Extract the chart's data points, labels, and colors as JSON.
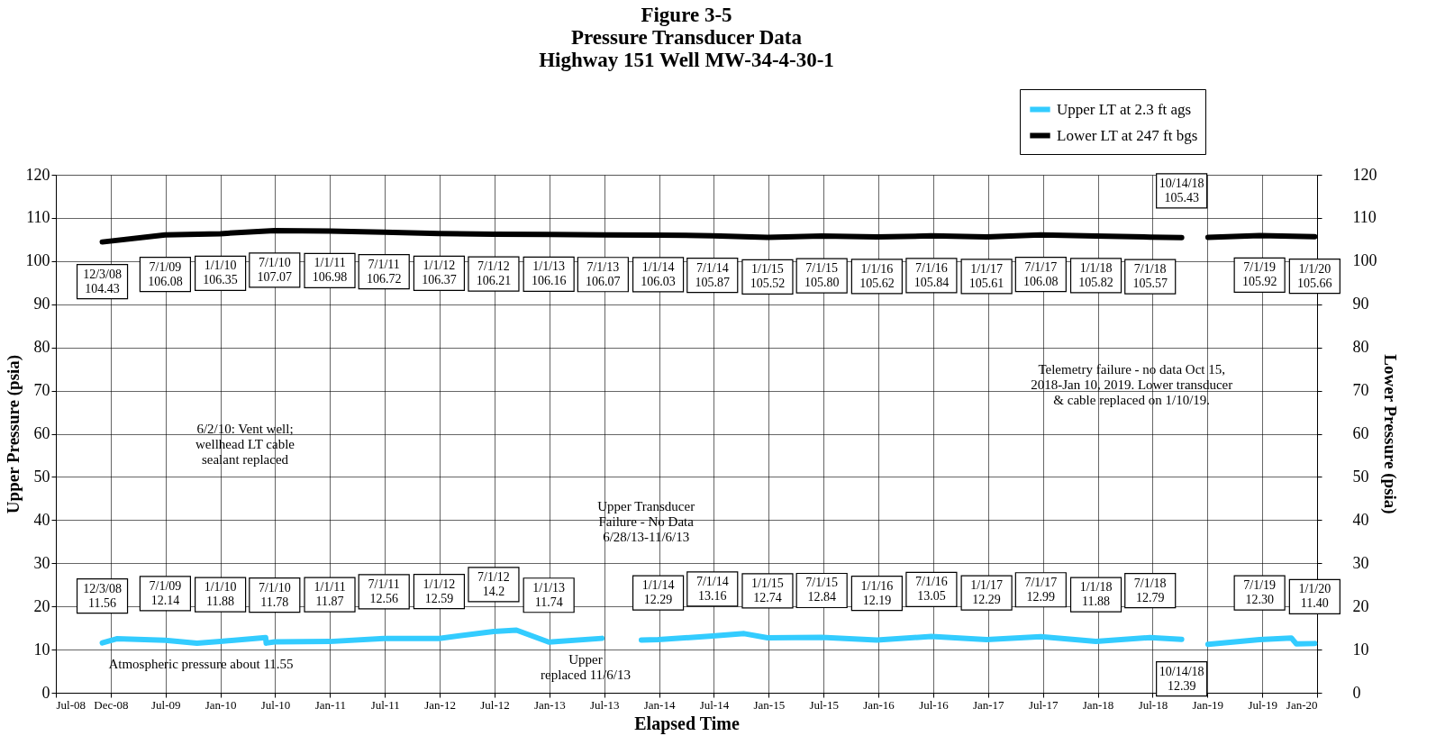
{
  "chart_data": {
    "type": "line",
    "title": "Figure 3-5\nPressure Transducer  Data\nHighway 151 Well MW-34-4-30-1",
    "xlabel": "Elapsed Time",
    "ylabel": "Upper Pressure (psia)",
    "y2label": "Lower Pressure (psia)",
    "xlim": [
      "2008-07-01",
      "2020-01-09"
    ],
    "xticks": [
      {
        "value": "2008-07-01",
        "label": "Jul-08"
      },
      {
        "value": "2008-12-31",
        "label": "Dec-08"
      },
      {
        "value": "2009-07-02",
        "label": "Jul-09"
      },
      {
        "value": "2010-01-01",
        "label": "Jan-10"
      },
      {
        "value": "2010-07-03",
        "label": "Jul-10"
      },
      {
        "value": "2011-01-02",
        "label": "Jan-11"
      },
      {
        "value": "2011-07-04",
        "label": "Jul-11"
      },
      {
        "value": "2012-01-03",
        "label": "Jan-12"
      },
      {
        "value": "2012-07-04",
        "label": "Jul-12"
      },
      {
        "value": "2013-01-03",
        "label": "Jan-13"
      },
      {
        "value": "2013-07-05",
        "label": "Jul-13"
      },
      {
        "value": "2014-01-04",
        "label": "Jan-14"
      },
      {
        "value": "2014-07-06",
        "label": "Jul-14"
      },
      {
        "value": "2015-01-05",
        "label": "Jan-15"
      },
      {
        "value": "2015-07-07",
        "label": "Jul-15"
      },
      {
        "value": "2016-01-06",
        "label": "Jan-16"
      },
      {
        "value": "2016-07-07",
        "label": "Jul-16"
      },
      {
        "value": "2017-01-06",
        "label": "Jan-17"
      },
      {
        "value": "2017-07-08",
        "label": "Jul-17"
      },
      {
        "value": "2018-01-07",
        "label": "Jan-18"
      },
      {
        "value": "2018-07-09",
        "label": "Jul-18"
      },
      {
        "value": "2019-01-08",
        "label": "Jan-19"
      },
      {
        "value": "2019-07-10",
        "label": "Jul-19"
      },
      {
        "value": "2020-01-09",
        "label": "Jan-20"
      }
    ],
    "ylim": [
      0,
      120
    ],
    "yticks": [
      0,
      10,
      20,
      30,
      40,
      50,
      60,
      70,
      80,
      90,
      100,
      110,
      120
    ],
    "y2lim": [
      0,
      120
    ],
    "y2ticks": [
      0,
      10,
      20,
      30,
      40,
      50,
      60,
      70,
      80,
      90,
      100,
      110,
      120
    ],
    "grid": true,
    "legend": "top right",
    "marker": "none",
    "line_style": "solid",
    "series": [
      {
        "name": "Upper LT at 2.3 ft ags",
        "color": "#33ccff",
        "x": [
          "2008-12-03",
          "2009-01-20",
          "2009-07-01",
          "2009-10-15",
          "2010-01-01",
          "2010-06-01",
          "2010-06-03",
          "2010-07-01",
          "2011-01-01",
          "2011-07-01",
          "2012-01-01",
          "2012-07-01",
          "2012-09-15",
          "2013-01-01",
          "2013-06-27",
          "2013-08-01",
          "2013-11-06",
          "2014-01-01",
          "2014-07-01",
          "2014-10-15",
          "2015-01-01",
          "2015-07-01",
          "2016-01-01",
          "2016-07-01",
          "2017-01-01",
          "2017-07-01",
          "2018-01-01",
          "2018-07-01",
          "2018-10-14",
          "2018-12-01",
          "2019-01-10",
          "2019-07-01",
          "2019-10-15",
          "2019-11-01",
          "2020-01-01"
        ],
        "values": [
          11.56,
          12.5,
          12.14,
          11.5,
          11.88,
          12.8,
          11.5,
          11.78,
          11.87,
          12.56,
          12.59,
          14.2,
          14.5,
          11.74,
          12.6,
          null,
          12.2,
          12.29,
          13.16,
          13.7,
          12.74,
          12.84,
          12.19,
          13.05,
          12.29,
          12.99,
          11.88,
          12.79,
          12.39,
          null,
          11.2,
          12.3,
          12.7,
          11.3,
          11.4
        ]
      },
      {
        "name": "Lower LT at 247 ft bgs",
        "color": "#000000",
        "axis": "y2",
        "x": [
          "2008-12-03",
          "2009-07-01",
          "2010-01-01",
          "2010-07-01",
          "2011-01-01",
          "2011-07-01",
          "2012-01-01",
          "2012-07-01",
          "2013-01-01",
          "2013-07-01",
          "2014-01-01",
          "2014-07-01",
          "2015-01-01",
          "2015-07-01",
          "2016-01-01",
          "2016-07-01",
          "2017-01-01",
          "2017-07-01",
          "2018-01-01",
          "2018-07-01",
          "2018-10-14",
          "2018-12-01",
          "2019-01-10",
          "2019-07-01",
          "2020-01-01"
        ],
        "values": [
          104.43,
          106.08,
          106.35,
          107.07,
          106.98,
          106.72,
          106.37,
          106.21,
          106.16,
          106.07,
          106.03,
          105.87,
          105.52,
          105.8,
          105.62,
          105.84,
          105.61,
          106.08,
          105.82,
          105.57,
          105.43,
          null,
          105.5,
          105.92,
          105.66
        ]
      }
    ],
    "annotations": [
      {
        "text": "12/3/08\n104.43",
        "x": "2008-12-03",
        "y": 104.43
      },
      {
        "text": "7/1/09\n106.08",
        "x": "2009-07-01",
        "y": 106.08
      },
      {
        "text": "1/1/10\n106.35",
        "x": "2010-01-01",
        "y": 106.35
      },
      {
        "text": "7/1/10\n107.07",
        "x": "2010-07-01",
        "y": 107.07
      },
      {
        "text": "1/1/11\n106.98",
        "x": "2011-01-01",
        "y": 106.98
      },
      {
        "text": "7/1/11\n106.72",
        "x": "2011-07-01",
        "y": 106.72
      },
      {
        "text": "1/1/12\n106.37",
        "x": "2012-01-01",
        "y": 106.37
      },
      {
        "text": "7/1/12\n106.21",
        "x": "2012-07-01",
        "y": 106.21
      },
      {
        "text": "1/1/13\n106.16",
        "x": "2013-01-01",
        "y": 106.16
      },
      {
        "text": "7/1/13\n106.07",
        "x": "2013-07-01",
        "y": 106.07
      },
      {
        "text": "1/1/14\n106.03",
        "x": "2014-01-01",
        "y": 106.03
      },
      {
        "text": "7/1/14\n105.87",
        "x": "2014-07-01",
        "y": 105.87
      },
      {
        "text": "1/1/15\n105.52",
        "x": "2015-01-01",
        "y": 105.52
      },
      {
        "text": "7/1/15\n105.80",
        "x": "2015-07-01",
        "y": 105.8
      },
      {
        "text": "1/1/16\n105.62",
        "x": "2016-01-01",
        "y": 105.62
      },
      {
        "text": "7/1/16\n105.84",
        "x": "2016-07-01",
        "y": 105.84
      },
      {
        "text": "1/1/17\n105.61",
        "x": "2017-01-01",
        "y": 105.61
      },
      {
        "text": "7/1/17\n106.08",
        "x": "2017-07-01",
        "y": 106.08
      },
      {
        "text": "1/1/18\n105.82",
        "x": "2018-01-01",
        "y": 105.82
      },
      {
        "text": "7/1/18\n105.57",
        "x": "2018-07-01",
        "y": 105.57
      },
      {
        "text": "10/14/18\n105.43",
        "x": "2018-10-14",
        "y": 105.43
      },
      {
        "text": "7/1/19\n105.92",
        "x": "2019-07-01",
        "y": 105.92
      },
      {
        "text": "1/1/20\n105.66",
        "x": "2020-01-01",
        "y": 105.66
      },
      {
        "text": "12/3/08\n11.56",
        "x": "2008-12-03",
        "y": 11.56
      },
      {
        "text": "7/1/09\n12.14",
        "x": "2009-07-01",
        "y": 12.14
      },
      {
        "text": "1/1/10\n11.88",
        "x": "2010-01-01",
        "y": 11.88
      },
      {
        "text": "7/1/10\n11.78",
        "x": "2010-07-01",
        "y": 11.78
      },
      {
        "text": "1/1/11\n11.87",
        "x": "2011-01-01",
        "y": 11.87
      },
      {
        "text": "7/1/11\n12.56",
        "x": "2011-07-01",
        "y": 12.56
      },
      {
        "text": "1/1/12\n12.59",
        "x": "2012-01-01",
        "y": 12.59
      },
      {
        "text": "7/1/12\n14.2",
        "x": "2012-07-01",
        "y": 14.2
      },
      {
        "text": "1/1/13\n11.74",
        "x": "2013-01-01",
        "y": 11.74
      },
      {
        "text": "1/1/14\n12.29",
        "x": "2014-01-01",
        "y": 12.29
      },
      {
        "text": "7/1/14\n13.16",
        "x": "2014-07-01",
        "y": 13.16
      },
      {
        "text": "1/1/15\n12.74",
        "x": "2015-01-01",
        "y": 12.74
      },
      {
        "text": "7/1/15\n12.84",
        "x": "2015-07-01",
        "y": 12.84
      },
      {
        "text": "1/1/16\n12.19",
        "x": "2016-01-01",
        "y": 12.19
      },
      {
        "text": "7/1/16\n13.05",
        "x": "2016-07-01",
        "y": 13.05
      },
      {
        "text": "1/1/17\n12.29",
        "x": "2017-01-01",
        "y": 12.29
      },
      {
        "text": "7/1/17\n12.99",
        "x": "2017-07-01",
        "y": 12.99
      },
      {
        "text": "1/1/18\n11.88",
        "x": "2018-01-01",
        "y": 11.88
      },
      {
        "text": "7/1/18\n12.79",
        "x": "2018-07-01",
        "y": 12.79
      },
      {
        "text": "10/14/18\n12.39",
        "x": "2018-10-14",
        "y": 12.39
      },
      {
        "text": "7/1/19\n12.30",
        "x": "2019-07-01",
        "y": 12.3
      },
      {
        "text": "1/1/20\n11.40",
        "x": "2020-01-01",
        "y": 11.4
      },
      "6/2/10: Vent well;\nwellhead LT cable\nsealant replaced",
      "Upper Transducer\nFailure - No Data\n6/28/13-11/6/13",
      "Telemetry failure - no data Oct 15,\n2018-Jan 10, 2019. Lower transducer\n& cable replaced on 1/10/19.",
      "Atmospheric pressure about 11.55",
      "Upper\nreplaced 11/6/13"
    ]
  }
}
